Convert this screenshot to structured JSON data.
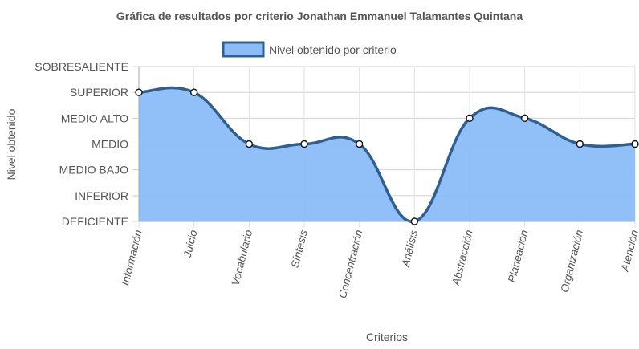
{
  "chart_data": {
    "type": "line",
    "title": "Gráfica de resultados por criterio Jonathan Emmanuel Talamantes Quintana",
    "xlabel": "Criterios",
    "ylabel": "Nivel obtenido",
    "categories": [
      "Información",
      "Juicio",
      "Vocabulario",
      "Síntesis",
      "Concentración",
      "Análisis",
      "Abstracción",
      "Planeación",
      "Organización",
      "Atención"
    ],
    "y_levels": [
      "DEFICIENTE",
      "INFERIOR",
      "MEDIO BAJO",
      "MEDIO",
      "MEDIO ALTO",
      "SUPERIOR",
      "SOBRESALIENTE"
    ],
    "ylim": [
      0,
      6
    ],
    "series": [
      {
        "name": "Nivel obtenido por criterio",
        "values": [
          5,
          5,
          3,
          3,
          3,
          0,
          4,
          4,
          3,
          3
        ],
        "line_color": "#2f5f91",
        "fill_color": "#8bbcf7"
      }
    ],
    "legend_position": "top",
    "grid": true,
    "filled": true,
    "smooth": true
  }
}
